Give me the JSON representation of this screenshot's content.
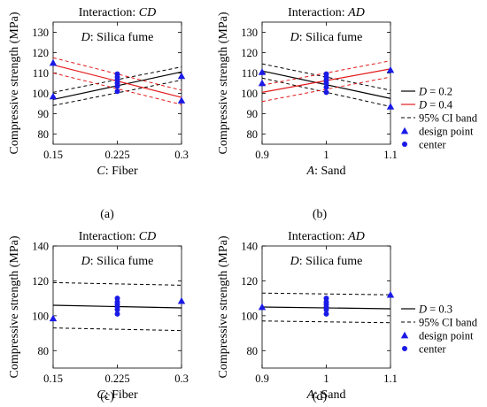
{
  "figure": {
    "captions": {
      "a": "(a)",
      "b": "(b)",
      "c": "(c)",
      "d": "(d)"
    },
    "legend_top": {
      "items": [
        {
          "var": "D",
          "text": " = 0.2",
          "color": "#000000",
          "kind": "solid"
        },
        {
          "var": "D",
          "text": " = 0.4",
          "color": "#e31a1c",
          "kind": "solid"
        },
        {
          "var": "",
          "text": "95% CI band",
          "color": "#000000",
          "kind": "dashed"
        },
        {
          "var": "",
          "text": "design point",
          "color": "#1a1ae6",
          "kind": "triangle"
        },
        {
          "var": "",
          "text": "center",
          "color": "#1a1ae6",
          "kind": "circle"
        }
      ]
    },
    "legend_bottom": {
      "items": [
        {
          "var": "D",
          "text": " = 0.3",
          "color": "#000000",
          "kind": "solid"
        },
        {
          "var": "",
          "text": "95% CI band",
          "color": "#000000",
          "kind": "dashed"
        },
        {
          "var": "",
          "text": "design point",
          "color": "#1a1ae6",
          "kind": "triangle"
        },
        {
          "var": "",
          "text": "center",
          "color": "#1a1ae6",
          "kind": "circle"
        }
      ]
    }
  },
  "chart_data": [
    {
      "id": "a",
      "type": "line",
      "title_prefix": "Interaction: ",
      "title_var": "CD",
      "subtitle_var": "D",
      "subtitle_text": ": Silica fume",
      "xlabel_var": "C",
      "xlabel_text": ": Fiber",
      "ylabel": "Compressive strength (MPa)",
      "xlim": [
        0.15,
        0.3
      ],
      "ylim": [
        75,
        135
      ],
      "xticks": [
        0.15,
        0.225,
        0.3
      ],
      "xticklabels": [
        "0.15",
        "0.225",
        "0.3"
      ],
      "yticks": [
        80,
        90,
        100,
        110,
        120,
        130
      ],
      "series": [
        {
          "name": "D = 0.2",
          "color": "#000000",
          "x": [
            0.15,
            0.3
          ],
          "y": [
            97,
            110.5
          ],
          "ci_lower": [
            94,
            106.5
          ],
          "ci_upper": [
            100.5,
            113
          ]
        },
        {
          "name": "D = 0.4",
          "color": "#e31a1c",
          "x": [
            0.15,
            0.3
          ],
          "y": [
            114,
            98
          ],
          "ci_lower": [
            110,
            94.5
          ],
          "ci_upper": [
            117.5,
            101.5
          ]
        }
      ],
      "design_points": [
        {
          "x": 0.15,
          "y": 115
        },
        {
          "x": 0.15,
          "y": 98.5
        },
        {
          "x": 0.3,
          "y": 108.5
        },
        {
          "x": 0.3,
          "y": 96.5
        }
      ],
      "center_points": [
        {
          "x": 0.225,
          "y": 101
        },
        {
          "x": 0.225,
          "y": 103.5
        },
        {
          "x": 0.225,
          "y": 105
        },
        {
          "x": 0.225,
          "y": 106.5
        },
        {
          "x": 0.225,
          "y": 108
        },
        {
          "x": 0.225,
          "y": 109.5
        }
      ]
    },
    {
      "id": "b",
      "type": "line",
      "title_prefix": "Interaction: ",
      "title_var": "AD",
      "subtitle_var": "D",
      "subtitle_text": ": Silica fume",
      "xlabel_var": "A",
      "xlabel_text": ": Sand",
      "ylabel": "Compressive strength (MPa)",
      "xlim": [
        0.9,
        1.1
      ],
      "ylim": [
        75,
        135
      ],
      "xticks": [
        0.9,
        1.0,
        1.1
      ],
      "xticklabels": [
        "0.9",
        "1",
        "1.1"
      ],
      "yticks": [
        80,
        90,
        100,
        110,
        120,
        130
      ],
      "series": [
        {
          "name": "D = 0.2",
          "color": "#000000",
          "x": [
            0.9,
            1.1
          ],
          "y": [
            111,
            97.5
          ],
          "ci_lower": [
            107.5,
            93.5
          ],
          "ci_upper": [
            114.5,
            101.5
          ]
        },
        {
          "name": "D = 0.4",
          "color": "#e31a1c",
          "x": [
            0.9,
            1.1
          ],
          "y": [
            100.5,
            112
          ],
          "ci_lower": [
            96,
            108
          ],
          "ci_upper": [
            104,
            116
          ]
        }
      ],
      "design_points": [
        {
          "x": 0.9,
          "y": 110.5
        },
        {
          "x": 0.9,
          "y": 105
        },
        {
          "x": 1.1,
          "y": 111.5
        },
        {
          "x": 1.1,
          "y": 93.5
        }
      ],
      "center_points": [
        {
          "x": 1.0,
          "y": 100.5
        },
        {
          "x": 1.0,
          "y": 103
        },
        {
          "x": 1.0,
          "y": 105
        },
        {
          "x": 1.0,
          "y": 106.5
        },
        {
          "x": 1.0,
          "y": 108
        },
        {
          "x": 1.0,
          "y": 109.5
        }
      ]
    },
    {
      "id": "c",
      "type": "line",
      "title_prefix": "Interaction: ",
      "title_var": "CD",
      "subtitle_var": "D",
      "subtitle_text": ": Silica fume",
      "xlabel_var": "C",
      "xlabel_text": ": Fiber",
      "ylabel": "Compressive strength (MPa)",
      "xlim": [
        0.15,
        0.3
      ],
      "ylim": [
        70,
        140
      ],
      "xticks": [
        0.15,
        0.225,
        0.3
      ],
      "xticklabels": [
        "0.15",
        "0.225",
        "0.3"
      ],
      "yticks": [
        80,
        100,
        120,
        140
      ],
      "series": [
        {
          "name": "D = 0.3",
          "color": "#000000",
          "x": [
            0.15,
            0.3
          ],
          "y": [
            106,
            104.5
          ],
          "ci_lower": [
            93,
            91.5
          ],
          "ci_upper": [
            119,
            117.5
          ]
        }
      ],
      "design_points": [
        {
          "x": 0.15,
          "y": 98.5
        },
        {
          "x": 0.3,
          "y": 108.5
        }
      ],
      "center_points": [
        {
          "x": 0.225,
          "y": 101
        },
        {
          "x": 0.225,
          "y": 103.5
        },
        {
          "x": 0.225,
          "y": 105
        },
        {
          "x": 0.225,
          "y": 106.5
        },
        {
          "x": 0.225,
          "y": 108
        },
        {
          "x": 0.225,
          "y": 110
        }
      ]
    },
    {
      "id": "d",
      "type": "line",
      "title_prefix": "Interaction: ",
      "title_var": "AD",
      "subtitle_var": "D",
      "subtitle_text": ": Silica fume",
      "xlabel_var": "A",
      "xlabel_text": ": Sand",
      "ylabel": "Compressive strength (MPa)",
      "xlim": [
        0.9,
        1.1
      ],
      "ylim": [
        70,
        140
      ],
      "xticks": [
        0.9,
        1.0,
        1.1
      ],
      "xticklabels": [
        "0.9",
        "1",
        "1.1"
      ],
      "yticks": [
        80,
        100,
        120,
        140
      ],
      "series": [
        {
          "name": "D = 0.3",
          "color": "#000000",
          "x": [
            0.9,
            1.1
          ],
          "y": [
            105,
            104
          ],
          "ci_lower": [
            97,
            96
          ],
          "ci_upper": [
            113,
            112
          ]
        }
      ],
      "design_points": [
        {
          "x": 0.9,
          "y": 105
        },
        {
          "x": 1.1,
          "y": 112
        }
      ],
      "center_points": [
        {
          "x": 1.0,
          "y": 101
        },
        {
          "x": 1.0,
          "y": 103.5
        },
        {
          "x": 1.0,
          "y": 105
        },
        {
          "x": 1.0,
          "y": 106.5
        },
        {
          "x": 1.0,
          "y": 108
        },
        {
          "x": 1.0,
          "y": 110
        }
      ]
    }
  ]
}
